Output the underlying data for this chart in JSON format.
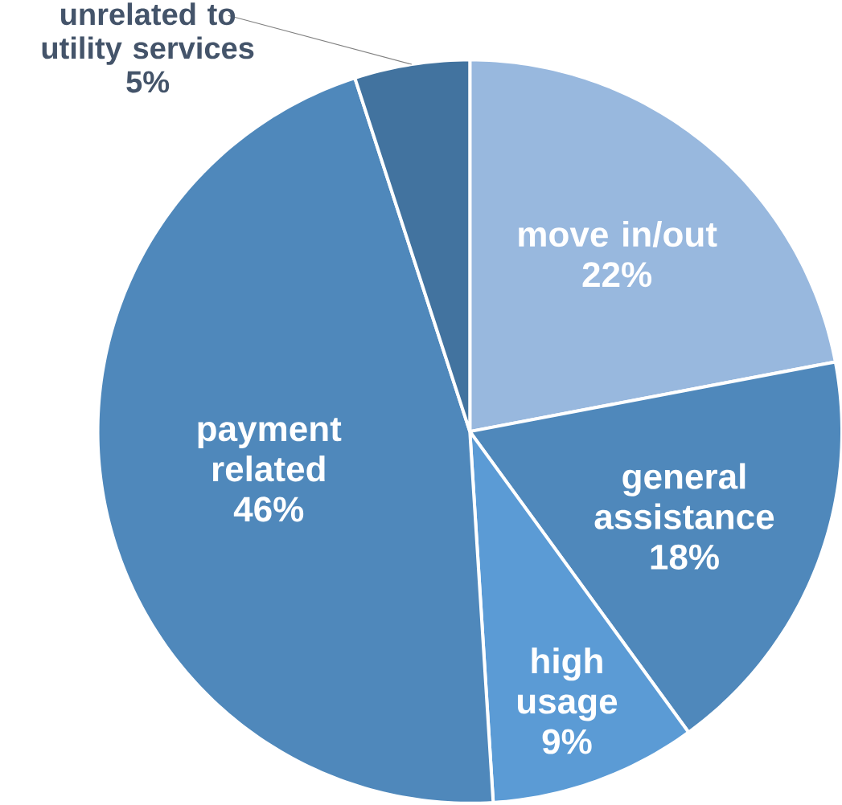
{
  "chart_data": {
    "type": "pie",
    "categories": [
      "move in/out",
      "general assistance",
      "high usage",
      "payment related",
      "unrelated to utility services"
    ],
    "values": [
      22,
      18,
      9,
      46,
      5
    ],
    "value_labels": [
      "22%",
      "18%",
      "9%",
      "46%",
      "5%"
    ],
    "colors": [
      "#98b8de",
      "#4f88bb",
      "#5b9bd5",
      "#4f88bb",
      "#42739f"
    ]
  }
}
